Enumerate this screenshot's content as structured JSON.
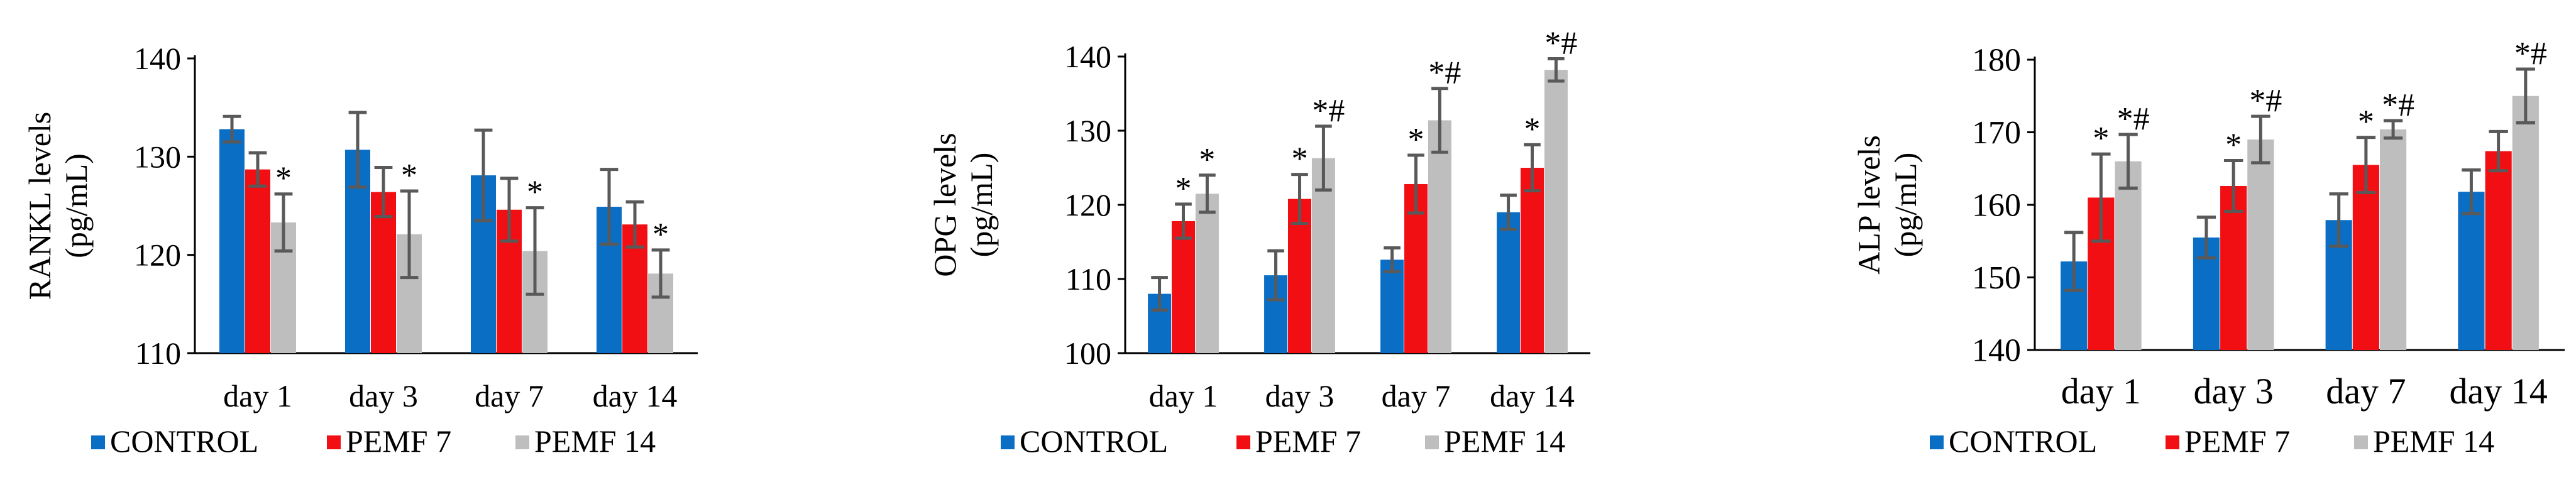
{
  "colors": {
    "control": "#0A6EC4",
    "pemf7": "#F20F13",
    "pemf14": "#BEBEBE",
    "errorbar": "#595959",
    "axis": "#000000"
  },
  "legend": [
    "CONTROL",
    "PEMF 7",
    "PEMF 14"
  ],
  "chart_data": [
    {
      "type": "bar",
      "title": "",
      "ylabel_line1": "RANKL levels",
      "ylabel_line2": "(pg/mL)",
      "ylim": [
        110,
        140
      ],
      "ytick_labels": [
        "110",
        "120",
        "130",
        "140"
      ],
      "categories": [
        "day 1",
        "day 3",
        "day 7",
        "day 14"
      ],
      "series": [
        {
          "name": "CONTROL",
          "values": [
            132.8,
            130.7,
            128.1,
            124.9
          ],
          "errors": [
            1.3,
            3.8,
            4.6,
            3.8
          ]
        },
        {
          "name": "PEMF 7",
          "values": [
            128.7,
            126.4,
            124.6,
            123.1
          ],
          "errors": [
            1.7,
            2.5,
            3.2,
            2.3
          ]
        },
        {
          "name": "PEMF 14",
          "values": [
            123.3,
            122.1,
            120.4,
            118.1
          ],
          "errors": [
            2.9,
            4.4,
            4.4,
            2.4
          ]
        }
      ],
      "annotations": [
        {
          "category": "day 1",
          "series": "PEMF 14",
          "text": "*"
        },
        {
          "category": "day 3",
          "series": "PEMF 14",
          "text": "*"
        },
        {
          "category": "day 7",
          "series": "PEMF 14",
          "text": "*"
        },
        {
          "category": "day 14",
          "series": "PEMF 14",
          "text": "*"
        }
      ]
    },
    {
      "type": "bar",
      "title": "",
      "ylabel_line1": "OPG levels",
      "ylabel_line2": "(pg/mL)",
      "ylim": [
        100,
        140
      ],
      "ytick_labels": [
        "100",
        "110",
        "120",
        "130",
        "140"
      ],
      "categories": [
        "day 1",
        "day 3",
        "day 7",
        "day 14"
      ],
      "series": [
        {
          "name": "CONTROL",
          "values": [
            108.0,
            110.5,
            112.6,
            119.0
          ],
          "errors": [
            2.2,
            3.3,
            1.6,
            2.3
          ]
        },
        {
          "name": "PEMF 7",
          "values": [
            117.8,
            120.8,
            122.8,
            125.0
          ],
          "errors": [
            2.3,
            3.3,
            3.9,
            3.1
          ]
        },
        {
          "name": "PEMF 14",
          "values": [
            121.5,
            126.3,
            131.4,
            138.2
          ],
          "errors": [
            2.5,
            4.3,
            4.3,
            1.5
          ]
        }
      ],
      "annotations": [
        {
          "category": "day 1",
          "series": "PEMF 7",
          "text": "*"
        },
        {
          "category": "day 1",
          "series": "PEMF 14",
          "text": "*"
        },
        {
          "category": "day 3",
          "series": "PEMF 7",
          "text": "*"
        },
        {
          "category": "day 3",
          "series": "PEMF 14",
          "text": "*#"
        },
        {
          "category": "day 7",
          "series": "PEMF 7",
          "text": "*"
        },
        {
          "category": "day 7",
          "series": "PEMF 14",
          "text": "*#"
        },
        {
          "category": "day 14",
          "series": "PEMF 7",
          "text": "*"
        },
        {
          "category": "day 14",
          "series": "PEMF 14",
          "text": "*#"
        }
      ]
    },
    {
      "type": "bar",
      "title": "",
      "ylabel_line1": "ALP levels",
      "ylabel_line2": "(pg/mL)",
      "ylim": [
        140,
        180
      ],
      "ytick_labels": [
        "140",
        "150",
        "160",
        "170",
        "180"
      ],
      "categories": [
        "day 1",
        "day 3",
        "day 7",
        "day 14"
      ],
      "series": [
        {
          "name": "CONTROL",
          "values": [
            152.2,
            155.5,
            157.9,
            161.8
          ],
          "errors": [
            4.0,
            2.8,
            3.6,
            3.0
          ]
        },
        {
          "name": "PEMF 7",
          "values": [
            161.0,
            162.6,
            165.5,
            167.4
          ],
          "errors": [
            6.0,
            3.5,
            3.8,
            2.7
          ]
        },
        {
          "name": "PEMF 14",
          "values": [
            166.0,
            169.0,
            170.4,
            175.0
          ],
          "errors": [
            3.7,
            3.2,
            1.2,
            3.7
          ]
        }
      ],
      "annotations": [
        {
          "category": "day 1",
          "series": "PEMF 7",
          "text": "*"
        },
        {
          "category": "day 1",
          "series": "PEMF 14",
          "text": "*#"
        },
        {
          "category": "day 3",
          "series": "PEMF 7",
          "text": "*"
        },
        {
          "category": "day 3",
          "series": "PEMF 14",
          "text": "*#"
        },
        {
          "category": "day 7",
          "series": "PEMF 7",
          "text": "*"
        },
        {
          "category": "day 7",
          "series": "PEMF 14",
          "text": "*#"
        },
        {
          "category": "day 14",
          "series": "PEMF 14",
          "text": "*#"
        }
      ]
    }
  ]
}
